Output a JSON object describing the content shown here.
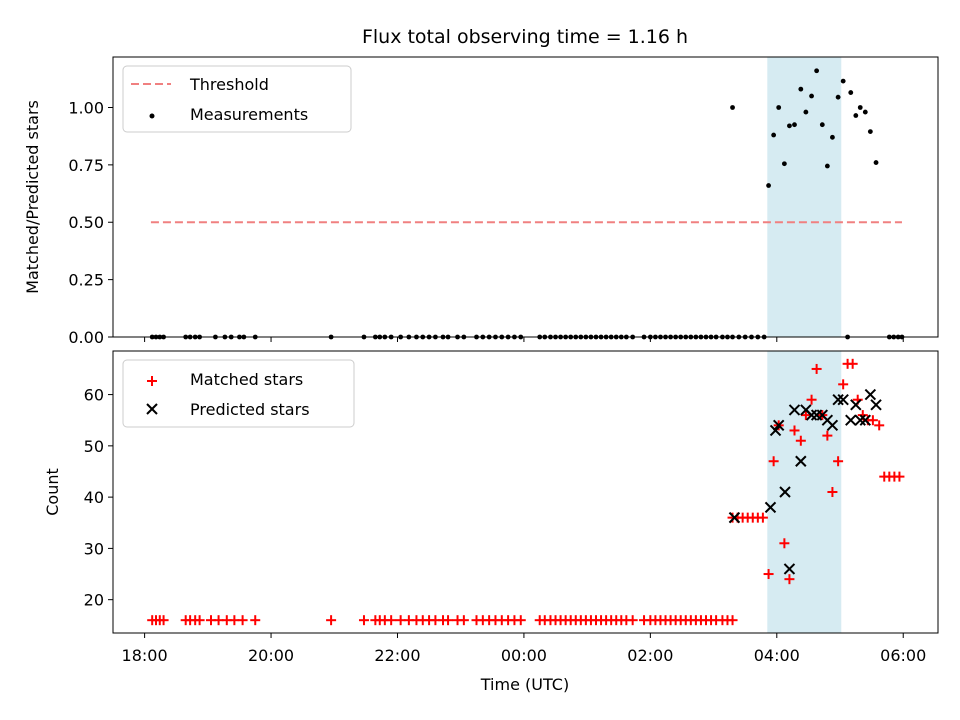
{
  "chart_data": {
    "type": "scatter",
    "title": "Flux total observing time = 1.16 h",
    "xlabel": "Time (UTC)",
    "xlim": [
      -0.5,
      12.55
    ],
    "x_ticks": [
      {
        "value": 0,
        "label": "18:00"
      },
      {
        "value": 2,
        "label": "20:00"
      },
      {
        "value": 4,
        "label": "22:00"
      },
      {
        "value": 6,
        "label": "00:00"
      },
      {
        "value": 8,
        "label": "02:00"
      },
      {
        "value": 10,
        "label": "04:00"
      },
      {
        "value": 12,
        "label": "06:00"
      }
    ],
    "highlight_span": [
      9.85,
      11.02
    ],
    "top": {
      "ylabel": "Matched/Predicted stars",
      "ylim": [
        0,
        1.22
      ],
      "y_ticks": [
        {
          "value": 0,
          "label": "0.00"
        },
        {
          "value": 0.25,
          "label": "0.25"
        },
        {
          "value": 0.5,
          "label": "0.50"
        },
        {
          "value": 0.75,
          "label": "0.75"
        },
        {
          "value": 1.0,
          "label": "1.00"
        }
      ],
      "legend": [
        "Threshold",
        "Measurements"
      ],
      "threshold": {
        "name": "Threshold",
        "x": [
          0.1,
          11.98
        ],
        "y": 0.5,
        "color": "#f08080"
      },
      "zero_points_x": [
        0.12,
        0.18,
        0.24,
        0.3,
        0.65,
        0.72,
        0.8,
        0.87,
        1.12,
        1.27,
        1.37,
        1.5,
        1.57,
        1.75,
        2.95,
        3.47,
        3.65,
        3.72,
        3.8,
        3.9,
        4.05,
        4.18,
        4.3,
        4.4,
        4.5,
        4.6,
        4.72,
        4.8,
        4.95,
        5.05,
        5.25,
        5.35,
        5.45,
        5.55,
        5.65,
        5.75,
        5.85,
        5.95,
        6.25,
        6.33,
        6.42,
        6.5,
        6.58,
        6.66,
        6.74,
        6.82,
        6.9,
        6.98,
        7.06,
        7.14,
        7.22,
        7.3,
        7.38,
        7.46,
        7.54,
        7.62,
        7.72,
        7.9,
        8.0,
        8.08,
        8.16,
        8.24,
        8.32,
        8.4,
        8.48,
        8.56,
        8.64,
        8.72,
        8.8,
        8.88,
        8.96,
        9.04,
        9.14,
        9.22,
        9.3,
        9.4,
        9.5,
        9.6,
        9.7,
        9.8,
        11.12,
        11.78,
        11.85,
        11.92,
        11.98
      ],
      "measurements": {
        "name": "Measurements",
        "x": [
          9.3,
          9.87,
          9.95,
          10.03,
          10.12,
          10.2,
          10.28,
          10.38,
          10.46,
          10.55,
          10.63,
          10.72,
          10.8,
          10.88,
          10.97,
          11.05,
          11.17,
          11.25,
          11.32,
          11.4,
          11.48,
          11.57
        ],
        "y": [
          1.0,
          0.66,
          0.88,
          1.0,
          0.755,
          0.92,
          0.925,
          1.08,
          0.98,
          1.05,
          1.16,
          0.925,
          0.745,
          0.87,
          1.045,
          1.115,
          1.065,
          0.965,
          1.0,
          0.98,
          0.895,
          0.76
        ]
      }
    },
    "bottom": {
      "ylabel": "Count",
      "ylim": [
        13.5,
        68.5
      ],
      "y_ticks": [
        {
          "value": 20,
          "label": "20"
        },
        {
          "value": 30,
          "label": "30"
        },
        {
          "value": 40,
          "label": "40"
        },
        {
          "value": 50,
          "label": "50"
        },
        {
          "value": 60,
          "label": "60"
        }
      ],
      "legend": [
        "Matched stars",
        "Predicted stars"
      ],
      "matched_low_x": [
        0.12,
        0.18,
        0.24,
        0.3,
        0.65,
        0.72,
        0.8,
        0.87,
        1.05,
        1.17,
        1.3,
        1.42,
        1.55,
        1.75,
        2.95,
        3.47,
        3.65,
        3.72,
        3.8,
        3.9,
        4.05,
        4.18,
        4.3,
        4.4,
        4.5,
        4.6,
        4.72,
        4.8,
        4.95,
        5.05,
        5.25,
        5.35,
        5.45,
        5.55,
        5.65,
        5.75,
        5.85,
        5.95,
        6.25,
        6.33,
        6.42,
        6.5,
        6.58,
        6.66,
        6.74,
        6.82,
        6.9,
        6.98,
        7.06,
        7.14,
        7.22,
        7.3,
        7.38,
        7.46,
        7.54,
        7.62,
        7.72,
        7.9,
        8.0,
        8.08,
        8.16,
        8.24,
        8.32,
        8.4,
        8.48,
        8.56,
        8.64,
        8.72,
        8.8,
        8.88,
        8.96,
        9.04,
        9.14,
        9.22,
        9.3
      ],
      "matched_low_y": 16,
      "matched": {
        "name": "Matched stars",
        "x": [
          9.3,
          9.38,
          9.46,
          9.54,
          9.62,
          9.7,
          9.78,
          9.87,
          9.95,
          10.03,
          10.12,
          10.2,
          10.28,
          10.38,
          10.46,
          10.55,
          10.63,
          10.72,
          10.8,
          10.88,
          10.97,
          11.05,
          11.12,
          11.2,
          11.28,
          11.36,
          11.44,
          11.52,
          11.62,
          11.7,
          11.78,
          11.86,
          11.94
        ],
        "y": [
          36,
          36,
          36,
          36,
          36,
          36,
          36,
          25,
          47,
          54,
          31,
          24,
          53,
          51,
          56,
          59,
          65,
          56,
          52,
          41,
          47,
          62,
          66,
          66,
          59,
          56,
          55,
          55,
          54,
          44,
          44,
          44,
          44
        ],
        "color": "#ff0000"
      },
      "predicted": {
        "name": "Predicted stars",
        "x": [
          9.33,
          9.9,
          9.98,
          10.03,
          10.13,
          10.2,
          10.28,
          10.38,
          10.46,
          10.55,
          10.63,
          10.72,
          10.8,
          10.88,
          10.97,
          11.05,
          11.17,
          11.25,
          11.32,
          11.4,
          11.48,
          11.57
        ],
        "y": [
          36,
          38,
          53,
          54,
          41,
          26,
          57,
          47,
          57,
          56,
          56,
          56,
          55,
          54,
          59,
          59,
          55,
          58,
          55,
          55,
          60,
          58
        ],
        "color": "#000000"
      }
    }
  }
}
